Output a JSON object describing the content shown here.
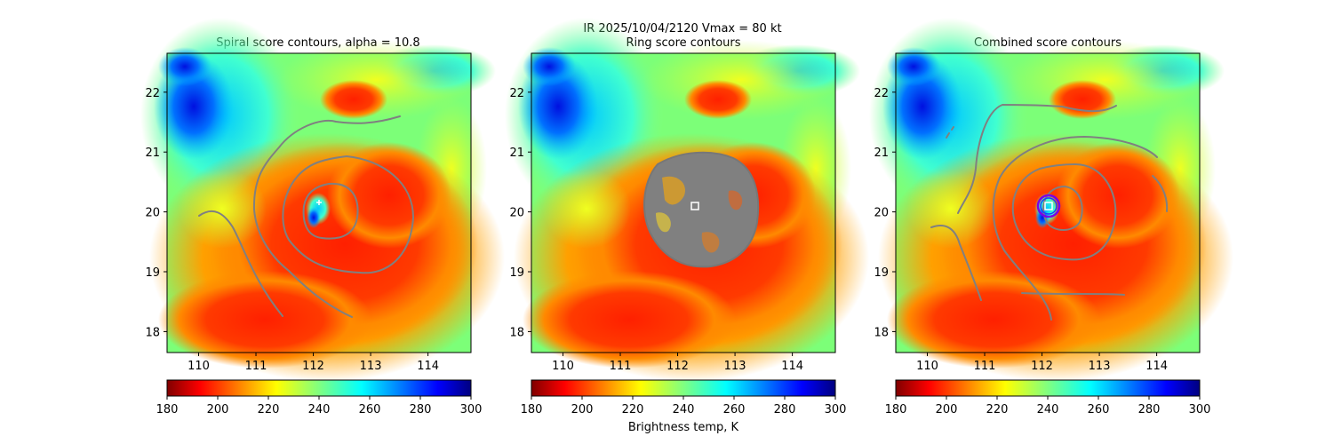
{
  "figure": {
    "suptitle": "IR  2025/10/04/2120    Vmax = 80 kt",
    "colorbar_label": "Brightness temp, K"
  },
  "colors": {
    "contour": "#808080",
    "marker_white": "#ffffff",
    "ring_purple": "#7a00e6",
    "ring_blue": "#1a3cff",
    "axis": "#000000"
  },
  "chart_data": [
    {
      "type": "heatmap",
      "title": "Spiral score contours, alpha = 10.8",
      "x_ticks": [
        110,
        111,
        112,
        113,
        114
      ],
      "y_ticks": [
        18,
        19,
        20,
        21,
        22
      ],
      "xlim": [
        109.45,
        114.75
      ],
      "ylim": [
        17.65,
        22.65
      ],
      "colormap": "jet_r",
      "colorbar": {
        "ticks": [
          180,
          200,
          220,
          240,
          260,
          280,
          300
        ],
        "range": [
          180,
          300
        ]
      },
      "center": [
        112.3,
        20.15
      ],
      "overlay": "spiral contours"
    },
    {
      "type": "heatmap",
      "title": "Ring score contours",
      "x_ticks": [
        110,
        111,
        112,
        113,
        114
      ],
      "y_ticks": [
        18,
        19,
        20,
        21,
        22
      ],
      "xlim": [
        109.45,
        114.75
      ],
      "ylim": [
        17.65,
        22.65
      ],
      "colormap": "jet_r",
      "colorbar": {
        "ticks": [
          180,
          200,
          220,
          240,
          260,
          280,
          300
        ],
        "range": [
          180,
          300
        ]
      },
      "center": [
        112.3,
        20.12
      ],
      "overlay": "ring contours"
    },
    {
      "type": "heatmap",
      "title": "Combined score contours",
      "x_ticks": [
        110,
        111,
        112,
        113,
        114
      ],
      "y_ticks": [
        18,
        19,
        20,
        21,
        22
      ],
      "xlim": [
        109.45,
        114.75
      ],
      "ylim": [
        17.65,
        22.65
      ],
      "colormap": "jet_r",
      "colorbar": {
        "ticks": [
          180,
          200,
          220,
          240,
          260,
          280,
          300
        ],
        "range": [
          180,
          300
        ]
      },
      "center": [
        112.1,
        20.12
      ],
      "overlay": "combined contours"
    }
  ]
}
